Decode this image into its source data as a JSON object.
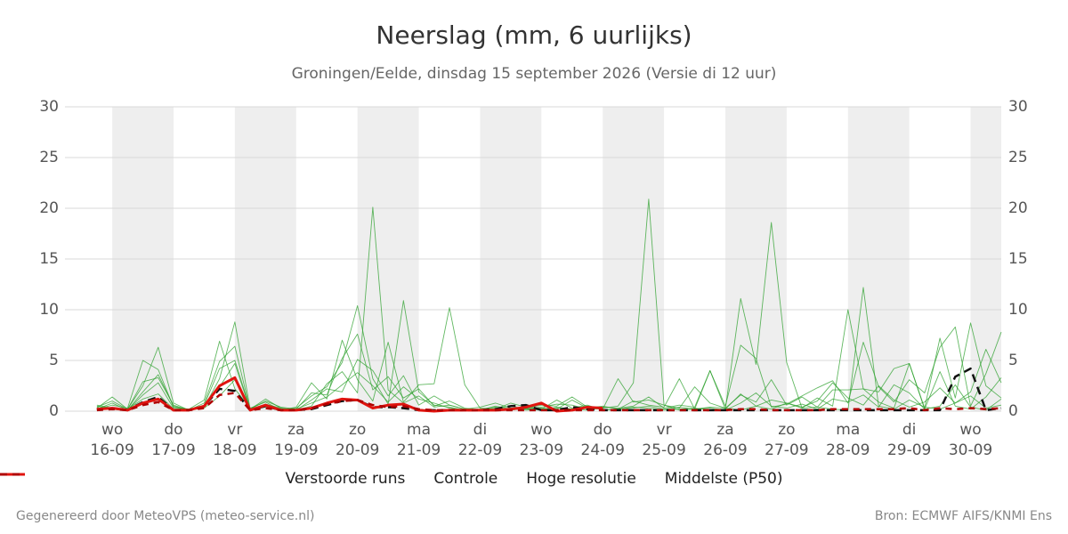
{
  "chart_data": {
    "type": "line",
    "title": "Neerslag (mm, 6 uurlijks)",
    "subtitle": "Groningen/Eelde, dinsdag 15 september 2026 (Versie di 12 uur)",
    "credit_left": "Gegenereerd door MeteoVPS (meteo-service.nl)",
    "credit_right": "Bron: ECMWF AIFS/KNMI Ens",
    "grid": true,
    "ylim": [
      0,
      30
    ],
    "yticks": [
      0,
      5,
      10,
      15,
      20,
      25,
      30
    ],
    "y2lim": [
      0,
      30
    ],
    "y2ticks": [
      0,
      5,
      10,
      15,
      20,
      25,
      30
    ],
    "xlim": [
      5.5,
      372
    ],
    "xticks": [
      {
        "value": 24,
        "label": "wo\n16-09"
      },
      {
        "value": 48,
        "label": "do\n17-09"
      },
      {
        "value": 72,
        "label": "vr\n18-09"
      },
      {
        "value": 96,
        "label": "za\n19-09"
      },
      {
        "value": 120,
        "label": "zo\n20-09"
      },
      {
        "value": 144,
        "label": "ma\n21-09"
      },
      {
        "value": 168,
        "label": "di\n22-09"
      },
      {
        "value": 192,
        "label": "wo\n23-09"
      },
      {
        "value": 216,
        "label": "do\n24-09"
      },
      {
        "value": 240,
        "label": "vr\n25-09"
      },
      {
        "value": 264,
        "label": "za\n26-09"
      },
      {
        "value": 288,
        "label": "zo\n27-09"
      },
      {
        "value": 312,
        "label": "ma\n28-09"
      },
      {
        "value": 336,
        "label": "di\n29-09"
      },
      {
        "value": 360,
        "label": "wo\n30-09"
      }
    ],
    "x": [
      18,
      24,
      30,
      36,
      42,
      48,
      54,
      60,
      66,
      72,
      78,
      84,
      90,
      96,
      102,
      108,
      114,
      120,
      126,
      132,
      138,
      144,
      150,
      156,
      162,
      168,
      174,
      180,
      186,
      192,
      198,
      204,
      210,
      216,
      222,
      228,
      234,
      240,
      246,
      252,
      258,
      264,
      270,
      276,
      282,
      288,
      294,
      300,
      306,
      312,
      318,
      324,
      330,
      336,
      342,
      348,
      354,
      360,
      366,
      372
    ],
    "series": [
      {
        "name": "Verstoorde runs",
        "color": "#2ca02c",
        "style": "solid",
        "members": [
          [
            0.3,
            1.4,
            0.2,
            2.5,
            6.3,
            0.8,
            0.1,
            0.4,
            3.2,
            8.8,
            0.2,
            1.2,
            0.3,
            0.1,
            0.5,
            2.7,
            3.9,
            1.8,
            20.1,
            2.1,
            0.8,
            1.5,
            0.4,
            0.6,
            0.2,
            0.1,
            0.3,
            0.5,
            0.2,
            0.1,
            0.4,
            0.2,
            0.1,
            0.3,
            0.5,
            2.8,
            20.9,
            0.6,
            0.1,
            0.2,
            0.4,
            0.3,
            0.1,
            0.5,
            0.2,
            0.8,
            0.3,
            0.4,
            0.2,
            0.1,
            12.2,
            0.5,
            0.2,
            1.1,
            0.4,
            0.2,
            0.8,
            1.5,
            0.3,
            0.6
          ],
          [
            0.5,
            0.2,
            0.1,
            1.9,
            3.6,
            0.5,
            0.1,
            0.8,
            4.9,
            6.4,
            0.1,
            0.5,
            0.2,
            0.3,
            1.5,
            2.4,
            4.8,
            10.4,
            3.2,
            0.7,
            10.9,
            1.9,
            0.6,
            0.4,
            0.1,
            0.2,
            0.1,
            0.3,
            0.1,
            0.2,
            1.1,
            0.3,
            0.6,
            0.1,
            0.2,
            0.4,
            0.3,
            0.1,
            0.2,
            0.3,
            0.1,
            0.2,
            11.1,
            4.6,
            18.6,
            4.8,
            0.3,
            1.3,
            0.5,
            10.0,
            2.2,
            0.9,
            0.3,
            4.7,
            0.2,
            0.5,
            2.6,
            0.4,
            0.1,
            1.2
          ],
          [
            0.2,
            0.6,
            0.3,
            5.0,
            4.1,
            0.4,
            0.2,
            1.1,
            6.9,
            2.2,
            0.3,
            0.9,
            0.1,
            0.4,
            2.8,
            1.2,
            7.0,
            3.1,
            1.0,
            6.8,
            0.9,
            2.6,
            2.7,
            10.2,
            2.6,
            0.3,
            0.2,
            0.8,
            0.4,
            0.3,
            0.2,
            1.1,
            0.3,
            0.5,
            0.2,
            1.0,
            0.6,
            0.4,
            3.2,
            0.2,
            4.0,
            0.5,
            6.5,
            5.2,
            0.4,
            0.7,
            1.5,
            2.3,
            3.0,
            0.8,
            6.8,
            2.4,
            0.9,
            3.1,
            1.8,
            6.3,
            8.3,
            0.5,
            3.7,
            7.8
          ],
          [
            0.4,
            1.0,
            0.2,
            2.9,
            3.3,
            0.6,
            0.1,
            0.6,
            4.2,
            5.0,
            0.2,
            1.0,
            0.4,
            0.2,
            1.8,
            1.6,
            5.2,
            7.6,
            2.1,
            3.4,
            1.3,
            2.2,
            0.5,
            1.0,
            0.3,
            0.1,
            0.5,
            0.2,
            0.3,
            0.6,
            0.5,
            1.4,
            0.4,
            0.2,
            3.2,
            0.9,
            1.1,
            0.6,
            0.3,
            2.4,
            0.8,
            0.3,
            1.6,
            0.9,
            3.1,
            0.6,
            1.4,
            0.4,
            2.1,
            2.1,
            2.2,
            1.9,
            4.2,
            4.7,
            0.3,
            7.2,
            1.3,
            8.7,
            2.5,
            1.3
          ],
          [
            0.2,
            0.8,
            0.1,
            1.6,
            2.8,
            0.3,
            0.2,
            0.5,
            2.4,
            4.7,
            0.1,
            0.7,
            0.3,
            0.1,
            1.1,
            2.2,
            1.9,
            5.1,
            4.0,
            1.5,
            3.5,
            0.6,
            1.5,
            0.6,
            0.2,
            0.4,
            0.8,
            0.3,
            0.2,
            0.4,
            0.7,
            0.6,
            0.2,
            0.4,
            0.3,
            0.5,
            1.4,
            0.3,
            0.6,
            0.4,
            4.0,
            0.2,
            1.7,
            0.5,
            1.1,
            0.8,
            0.4,
            1.0,
            2.8,
            1.3,
            0.6,
            2.5,
            1.1,
            0.4,
            0.9,
            2.3,
            0.8,
            1.9,
            6.1,
            2.8
          ],
          [
            0.6,
            0.3,
            0.2,
            1.2,
            1.7,
            0.2,
            0.1,
            0.3,
            1.5,
            3.1,
            0.2,
            0.4,
            0.1,
            0.2,
            0.8,
            1.4,
            2.6,
            3.8,
            2.5,
            0.9,
            2.4,
            1.2,
            0.8,
            0.3,
            0.1,
            0.2,
            0.4,
            0.1,
            0.3,
            0.2,
            0.3,
            0.2,
            0.5,
            0.1,
            0.2,
            0.3,
            0.5,
            0.2,
            0.4,
            0.2,
            0.3,
            0.1,
            0.8,
            1.8,
            0.5,
            0.3,
            0.7,
            0.2,
            1.2,
            0.9,
            1.6,
            0.4,
            2.6,
            1.8,
            0.2,
            3.9,
            0.5,
            0.2,
            1.4,
            3.3
          ]
        ]
      },
      {
        "name": "Controle",
        "color": "#111111",
        "style": "dashed",
        "values": [
          0.2,
          0.3,
          0.1,
          0.9,
          1.4,
          0.1,
          0.1,
          0.5,
          2.2,
          2.0,
          0.1,
          0.5,
          0.1,
          0.1,
          0.2,
          0.6,
          1.0,
          1.1,
          0.4,
          0.4,
          0.3,
          0.1,
          0.1,
          0.1,
          0.1,
          0.1,
          0.2,
          0.5,
          0.6,
          0.1,
          0.1,
          0.4,
          0.2,
          0.1,
          0.1,
          0.1,
          0.1,
          0.1,
          0.1,
          0.1,
          0.1,
          0.1,
          0.1,
          0.1,
          0.1,
          0.1,
          0.1,
          0.1,
          0.1,
          0.1,
          0.1,
          0.1,
          0.1,
          0.1,
          0.1,
          0.1,
          3.4,
          4.2,
          0.1,
          0.3
        ]
      },
      {
        "name": "Hoge resolutie",
        "color": "#e0140f",
        "style": "solid",
        "values": [
          0.2,
          0.3,
          0.1,
          0.8,
          1.2,
          0.1,
          0.1,
          0.5,
          2.5,
          3.3,
          0.1,
          0.6,
          0.1,
          0.1,
          0.3,
          0.8,
          1.2,
          1.1,
          0.3,
          0.6,
          0.7,
          0.1,
          0.0,
          0.1,
          0.1,
          0.1,
          0.1,
          0.2,
          0.4,
          0.8,
          0.0,
          0.1,
          0.4,
          0.3,
          null,
          null,
          null,
          null,
          null,
          null,
          null,
          null,
          null,
          null,
          null,
          null,
          null,
          null,
          null,
          null,
          null,
          null,
          null,
          null,
          null,
          null,
          null,
          null,
          null,
          null
        ]
      },
      {
        "name": "Middelste (P50)",
        "color": "#b00000",
        "style": "dashed",
        "values": [
          0.1,
          0.2,
          0.1,
          0.6,
          0.9,
          0.1,
          0.1,
          0.3,
          1.6,
          1.8,
          0.1,
          0.3,
          0.1,
          0.1,
          0.3,
          0.7,
          1.0,
          1.1,
          0.6,
          0.4,
          0.5,
          0.2,
          0.1,
          0.1,
          0.1,
          0.1,
          0.1,
          0.1,
          0.1,
          0.1,
          0.1,
          0.1,
          0.1,
          0.1,
          0.1,
          0.1,
          0.1,
          0.1,
          0.1,
          0.1,
          0.1,
          0.1,
          0.2,
          0.2,
          0.1,
          0.1,
          0.1,
          0.1,
          0.2,
          0.2,
          0.2,
          0.2,
          0.2,
          0.3,
          0.1,
          0.3,
          0.2,
          0.3,
          0.2,
          0.3
        ]
      }
    ]
  }
}
